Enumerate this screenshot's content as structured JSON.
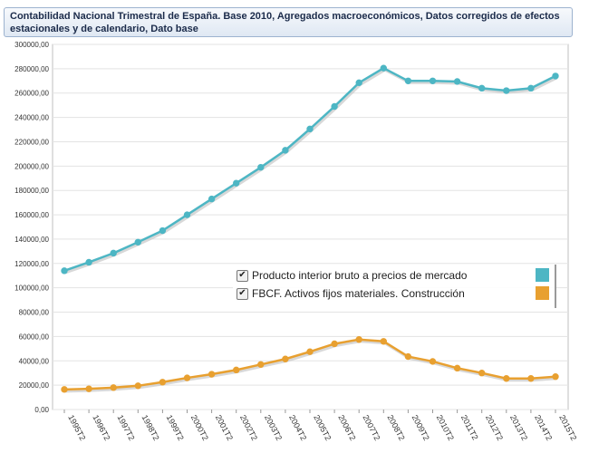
{
  "title": "Contabilidad Nacional Trimestral de España. Base 2010, Agregados macroeconómicos, Datos corregidos de efectos estacionales y de calendario, Dato base",
  "chart_data": {
    "type": "line",
    "categories": [
      "1995T2",
      "1996T2",
      "1997T2",
      "1998T2",
      "1999T2",
      "2000T2",
      "2001T2",
      "2002T2",
      "2003T2",
      "2004T2",
      "2005T2",
      "2006T2",
      "2007T2",
      "2008T2",
      "2009T2",
      "2010T2",
      "2011T2",
      "2012T2",
      "2013T2",
      "2014T2",
      "2015T2"
    ],
    "y_ticks": [
      "0,00",
      "20000,00",
      "40000,00",
      "60000,00",
      "80000,00",
      "100000,00",
      "120000,00",
      "140000,00",
      "160000,00",
      "180000,00",
      "200000,00",
      "220000,00",
      "240000,00",
      "260000,00",
      "280000,00",
      "300000,00"
    ],
    "ylim": [
      0,
      300000
    ],
    "grid": "horizontal",
    "legend_position": "center-right",
    "series": [
      {
        "name": "Producto interior bruto a precios de mercado",
        "color": "#4db6c4",
        "checked": true,
        "values": [
          114000,
          121000,
          128500,
          137500,
          147000,
          160000,
          173000,
          186000,
          199000,
          213000,
          230500,
          249000,
          268500,
          280500,
          270000,
          270000,
          269500,
          264000,
          262000,
          264000,
          274000
        ]
      },
      {
        "name": "FBCF. Activos fijos materiales. Construcción",
        "color": "#e8a030",
        "checked": true,
        "values": [
          16500,
          17000,
          18000,
          19500,
          22500,
          26000,
          29000,
          32500,
          37000,
          41500,
          47500,
          54000,
          57500,
          56000,
          43500,
          39500,
          34000,
          30000,
          25500,
          25500,
          27000
        ]
      }
    ]
  }
}
